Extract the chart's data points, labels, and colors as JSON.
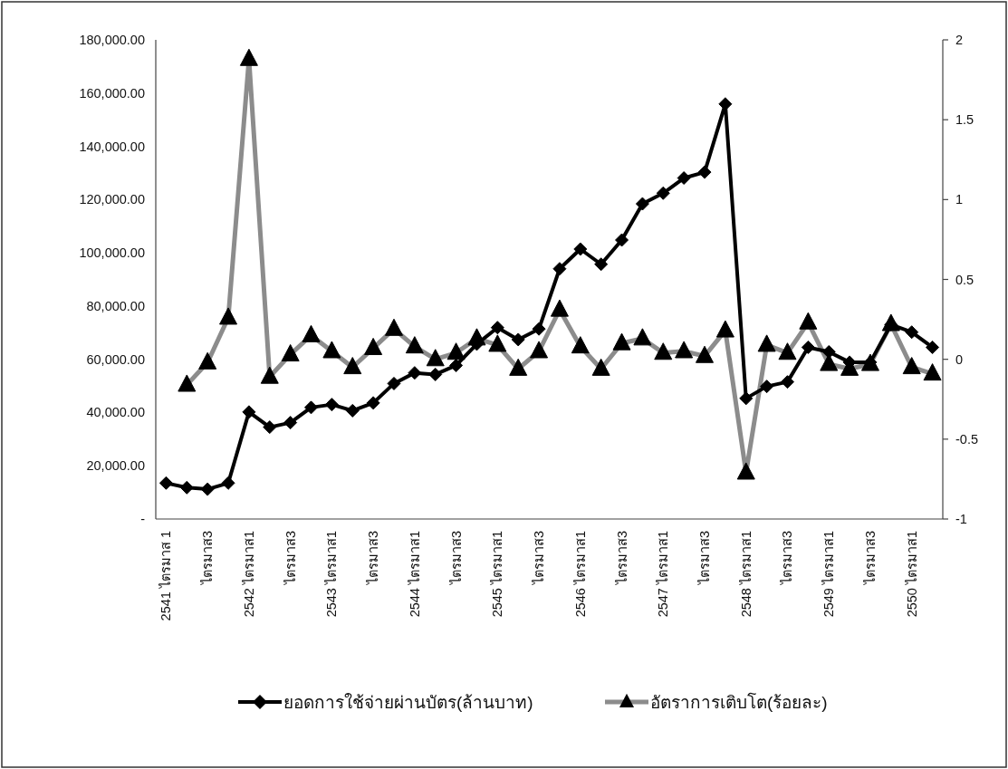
{
  "chart_data": {
    "type": "line",
    "categories": [
      "2541 ไตรมาส 1",
      null,
      "ไตรมาส3",
      null,
      "2542 ไตรมาส1",
      null,
      "ไตรมาส3",
      null,
      "2543 ไตรมาส1",
      null,
      "ไตรมาส3",
      null,
      "2544 ไตรมาส1",
      null,
      "ไตรมาส3",
      null,
      "2545 ไตรมาส1",
      null,
      "ไตรมาส3",
      null,
      "2546 ไตรมาส1",
      null,
      "ไตรมาส3",
      null,
      "2547 ไตรมาส1",
      null,
      "ไตรมาส3",
      null,
      "2548 ไตรมาส1",
      null,
      "ไตรมาส3",
      null,
      "2549 ไตรมาส1",
      null,
      "ไตรมาส3",
      null,
      "2550 ไตรมาส1",
      null
    ],
    "series": [
      {
        "name": "ยอดการใช้จ่ายผ่านบัตร(ล้านบาท)",
        "color": "#000000",
        "marker": "diamond",
        "values": [
          13500,
          11800,
          11200,
          13500,
          40200,
          34500,
          36200,
          41900,
          43000,
          40700,
          43600,
          50900,
          54900,
          54300,
          57700,
          65700,
          71900,
          67400,
          71400,
          94000,
          101400,
          95700,
          104800,
          118400,
          122400,
          128100,
          130300,
          155900,
          45300,
          49800,
          51500,
          64500,
          62800,
          58900,
          58900,
          73000,
          70200,
          64500
        ]
      },
      {
        "name": "อัตราการเติบโต(ร้อยละ)",
        "color": "#8c8c8c",
        "marker": "triangle",
        "axis": "y2",
        "values": [
          null,
          -0.16,
          -0.02,
          0.26,
          1.88,
          -0.11,
          0.03,
          0.15,
          0.05,
          -0.05,
          0.07,
          0.19,
          0.08,
          0.0,
          0.04,
          0.13,
          0.09,
          -0.06,
          0.05,
          0.31,
          0.08,
          -0.06,
          0.1,
          0.13,
          0.04,
          0.05,
          0.02,
          0.18,
          -0.71,
          0.09,
          0.04,
          0.23,
          -0.03,
          -0.06,
          -0.03,
          0.22,
          -0.05,
          -0.09
        ]
      }
    ],
    "ylim": [
      0,
      180000
    ],
    "yticks": [
      {
        "value": 0,
        "label": "-"
      },
      {
        "value": 20000,
        "label": "20,000.00"
      },
      {
        "value": 40000,
        "label": "40,000.00"
      },
      {
        "value": 60000,
        "label": "60,000.00"
      },
      {
        "value": 80000,
        "label": "80,000.00"
      },
      {
        "value": 100000,
        "label": "100,000.00"
      },
      {
        "value": 120000,
        "label": "120,000.00"
      },
      {
        "value": 140000,
        "label": "140,000.00"
      },
      {
        "value": 160000,
        "label": "160,000.00"
      },
      {
        "value": 180000,
        "label": "180,000.00"
      }
    ],
    "y2lim": [
      -1,
      2
    ],
    "y2ticks": [
      -1,
      -0.5,
      0,
      0.5,
      1,
      1.5,
      2
    ],
    "grid": false,
    "legend": "bottom"
  }
}
